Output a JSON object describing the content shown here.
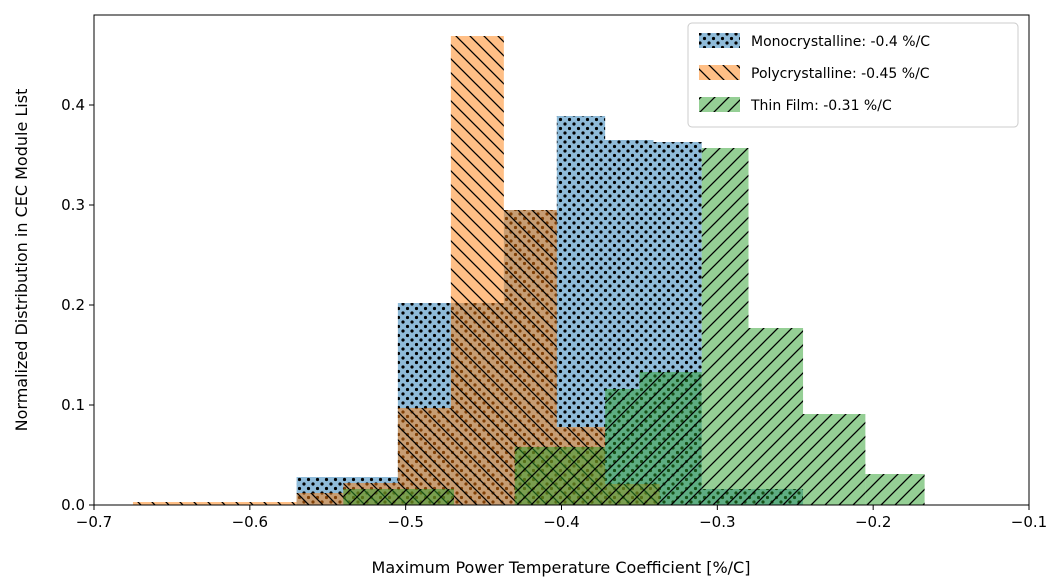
{
  "chart_data": {
    "type": "histogram",
    "title": "",
    "xlabel": "Maximum Power Temperature Coefficient [%/C]",
    "ylabel": "Normalized Distribution in CEC Module List",
    "xlim": [
      -0.7,
      -0.1
    ],
    "ylim": [
      0,
      0.49
    ],
    "xticks": [
      -0.7,
      -0.6,
      -0.5,
      -0.4,
      -0.3,
      -0.2,
      -0.1
    ],
    "xtick_labels": [
      "−0.7",
      "−0.6",
      "−0.5",
      "−0.4",
      "−0.3",
      "−0.2",
      "−0.1"
    ],
    "yticks": [
      0.0,
      0.1,
      0.2,
      0.3,
      0.4
    ],
    "ytick_labels": [
      "0.0",
      "0.1",
      "0.2",
      "0.3",
      "0.4"
    ],
    "grid": false,
    "legend_position": "top-right",
    "series": [
      {
        "name": "Monocrystalline: -0.4 %/C",
        "color": "#1f77b4",
        "hatch": "dots",
        "bins": [
          {
            "x0": -0.57,
            "x1": -0.505,
            "value": 0.028
          },
          {
            "x0": -0.505,
            "x1": -0.471,
            "value": 0.202
          },
          {
            "x0": -0.471,
            "x1": -0.437,
            "value": 0.202
          },
          {
            "x0": -0.437,
            "x1": -0.403,
            "value": 0.295
          },
          {
            "x0": -0.403,
            "x1": -0.372,
            "value": 0.389
          },
          {
            "x0": -0.372,
            "x1": -0.341,
            "value": 0.365
          },
          {
            "x0": -0.341,
            "x1": -0.31,
            "value": 0.363
          },
          {
            "x0": -0.31,
            "x1": -0.277,
            "value": 0.016
          },
          {
            "x0": -0.277,
            "x1": -0.245,
            "value": 0.016
          }
        ]
      },
      {
        "name": "Polycrystalline: -0.45 %/C",
        "color": "#ff7f0e",
        "hatch": "backslash",
        "bins": [
          {
            "x0": -0.675,
            "x1": -0.63,
            "value": 0.003
          },
          {
            "x0": -0.63,
            "x1": -0.57,
            "value": 0.003
          },
          {
            "x0": -0.57,
            "x1": -0.54,
            "value": 0.012
          },
          {
            "x0": -0.54,
            "x1": -0.505,
            "value": 0.022
          },
          {
            "x0": -0.505,
            "x1": -0.471,
            "value": 0.097
          },
          {
            "x0": -0.471,
            "x1": -0.437,
            "value": 0.469
          },
          {
            "x0": -0.437,
            "x1": -0.403,
            "value": 0.295
          },
          {
            "x0": -0.403,
            "x1": -0.372,
            "value": 0.078
          },
          {
            "x0": -0.372,
            "x1": -0.337,
            "value": 0.021
          }
        ]
      },
      {
        "name": "Thin Film: -0.31 %/C",
        "color": "#2ca02c",
        "hatch": "slash",
        "bins": [
          {
            "x0": -0.54,
            "x1": -0.469,
            "value": 0.016
          },
          {
            "x0": -0.469,
            "x1": -0.43,
            "value": 0.0
          },
          {
            "x0": -0.43,
            "x1": -0.372,
            "value": 0.058
          },
          {
            "x0": -0.372,
            "x1": -0.35,
            "value": 0.116
          },
          {
            "x0": -0.35,
            "x1": -0.31,
            "value": 0.133
          },
          {
            "x0": -0.31,
            "x1": -0.28,
            "value": 0.357
          },
          {
            "x0": -0.28,
            "x1": -0.245,
            "value": 0.177
          },
          {
            "x0": -0.245,
            "x1": -0.205,
            "value": 0.091
          },
          {
            "x0": -0.205,
            "x1": -0.167,
            "value": 0.031
          }
        ]
      }
    ]
  }
}
